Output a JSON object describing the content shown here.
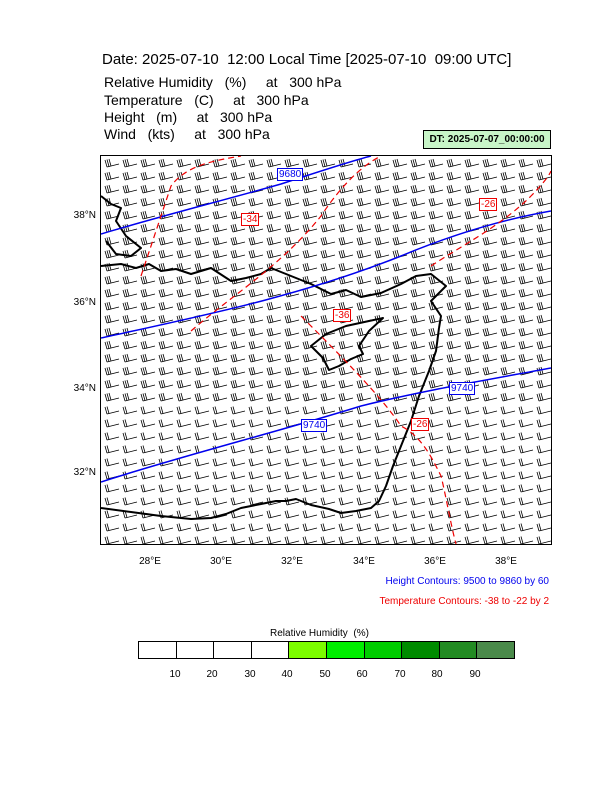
{
  "title": "Date: 2025-07-10  12:00 Local Time [2025-07-10  09:00 UTC]",
  "fields": [
    {
      "name": "Relative Humidity",
      "unit": "(%)",
      "at": "at",
      "level": "300 hPa"
    },
    {
      "name": "Temperature",
      "unit": "(C)",
      "at": "at",
      "level": "300 hPa"
    },
    {
      "name": "Height",
      "unit": "(m)",
      "at": "at",
      "level": "300 hPa"
    },
    {
      "name": "Wind",
      "unit": "(kts)",
      "at": "at",
      "level": "300 hPa"
    }
  ],
  "dt_badge": "DT: 2025-07-07_00:00:00",
  "lat_labels": [
    "38°N",
    "36°N",
    "34°N",
    "32°N"
  ],
  "lon_labels": [
    "28°E",
    "30°E",
    "32°E",
    "34°E",
    "36°E",
    "38°E"
  ],
  "height_contours": {
    "label": "Height Contours: 9500 to 9860 by 60",
    "line_labels": [
      "9680",
      "9740",
      "9740"
    ],
    "color": "#0000ee"
  },
  "temperature_contours": {
    "label": "Temperature Contours: -38 to -22 by 2",
    "line_labels": [
      "-34",
      "-36",
      "-26",
      "-26"
    ],
    "color": "#ee0000"
  },
  "colorbar": {
    "title": "Relative Humidity  (%)",
    "labels": [
      "10",
      "20",
      "30",
      "40",
      "50",
      "60",
      "70",
      "80",
      "90"
    ],
    "colors": [
      "#ffffff",
      "#ffffff",
      "#ffffff",
      "#ffffff",
      "#7cfc00",
      "#00ee00",
      "#00cd00",
      "#008b00",
      "#228b22",
      "#4a8a4a"
    ]
  },
  "colors": {
    "height": "#0000ee",
    "temperature": "#ee0000",
    "coast": "#000000",
    "dt_badge": "#c8f5c8"
  }
}
